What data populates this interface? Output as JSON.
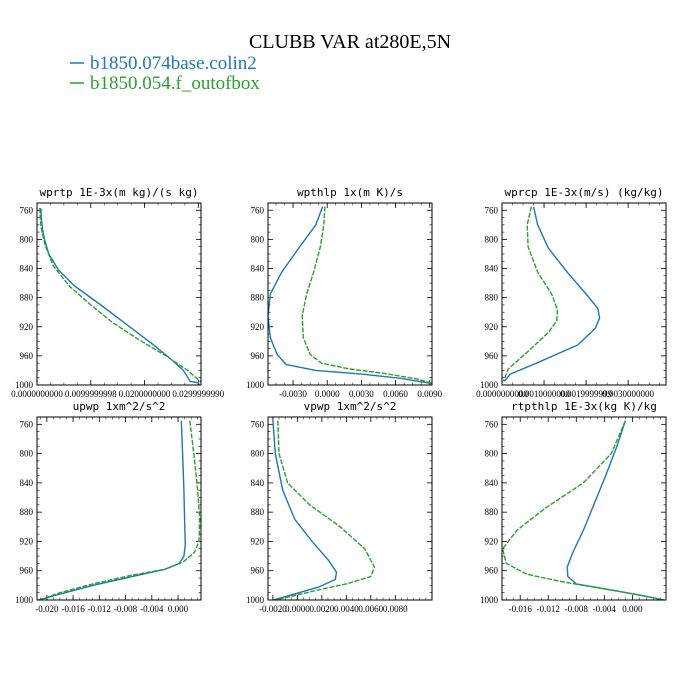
{
  "figure": {
    "title": "CLUBB VAR at280E,5N",
    "legend": [
      {
        "label": "b1850.074base.colin2",
        "color": "#1f77b4"
      },
      {
        "label": "b1850.054.f_outofbox",
        "color": "#2ca02c"
      }
    ]
  },
  "chart_data": [
    {
      "type": "line",
      "title": "wprtp  1E-3x(m kg)/(s kg)",
      "xlim": [
        0.0,
        0.0305
      ],
      "ylim": [
        1000,
        750
      ],
      "xticks": [
        0.0,
        0.0099999998,
        0.02,
        0.029999999
      ],
      "xtick_labels": [
        "0.0000000000",
        "0.0099999998",
        "0.0200000000",
        "0.0299999990"
      ],
      "yticks": [
        760,
        800,
        840,
        880,
        920,
        960,
        1000
      ],
      "ytick_labels": [
        "760",
        "800",
        "840",
        "880",
        "920",
        "960",
        "1000"
      ],
      "series": [
        {
          "name": "b1850.074base.colin2",
          "color": "#1f77b4",
          "x": [
            0.0007,
            0.0008,
            0.001,
            0.0014,
            0.0022,
            0.004,
            0.007,
            0.0115,
            0.0165,
            0.0215,
            0.025,
            0.0272,
            0.0285,
            0.03,
            0.0302
          ],
          "y": [
            757,
            770,
            785,
            800,
            820,
            842,
            864,
            888,
            916,
            944,
            965,
            980,
            995,
            997,
            1000
          ]
        },
        {
          "name": "b1850.054.f_outofbox",
          "color": "#2ca02c",
          "x": [
            0.0005,
            0.0006,
            0.0008,
            0.0015,
            0.003,
            0.006,
            0.01,
            0.014,
            0.019,
            0.024,
            0.028,
            0.0305
          ],
          "y": [
            757,
            770,
            785,
            808,
            836,
            864,
            890,
            914,
            938,
            960,
            980,
            996
          ]
        }
      ]
    },
    {
      "type": "line",
      "title": "wpthlp  1x(m K)/s",
      "xlim": [
        -0.0052,
        0.0092
      ],
      "ylim": [
        1000,
        750
      ],
      "xticks": [
        -0.003,
        0.0,
        0.003,
        0.006,
        0.009
      ],
      "xtick_labels": [
        "-0.0030",
        "0.0000",
        "0.0030",
        "0.0060",
        "0.0090"
      ],
      "yticks": [
        760,
        800,
        840,
        880,
        920,
        960,
        1000
      ],
      "ytick_labels": [
        "760",
        "800",
        "840",
        "880",
        "920",
        "960",
        "1000"
      ],
      "series": [
        {
          "name": "b1850.074base.colin2",
          "color": "#1f77b4",
          "x": [
            -0.0004,
            -0.001,
            -0.0025,
            -0.004,
            -0.005,
            -0.0052,
            -0.005,
            -0.0044,
            -0.0036,
            -0.001,
            0.003,
            0.0065,
            0.0092
          ],
          "y": [
            755,
            780,
            812,
            845,
            875,
            905,
            935,
            958,
            972,
            980,
            985,
            991,
            998
          ]
        },
        {
          "name": "b1850.054.f_outofbox",
          "color": "#2ca02c",
          "x": [
            -0.0002,
            -0.0003,
            -0.0006,
            -0.0012,
            -0.0018,
            -0.0022,
            -0.0021,
            -0.0015,
            -0.0005,
            0.002,
            0.005,
            0.008,
            0.0092
          ],
          "y": [
            755,
            780,
            810,
            845,
            875,
            905,
            935,
            958,
            970,
            978,
            984,
            992,
            998
          ]
        }
      ]
    },
    {
      "type": "line",
      "title": "wprcp  1E-3x(m/s) (kg/kg)",
      "xlim": [
        0.0,
        0.0039
      ],
      "ylim": [
        1000,
        750
      ],
      "xticks": [
        0.0,
        0.001,
        0.002,
        0.003
      ],
      "xtick_labels": [
        "0.0000000000",
        "0.0010000000",
        "0.0019999999",
        "0.0030000000"
      ],
      "yticks": [
        760,
        800,
        840,
        880,
        920,
        960,
        1000
      ],
      "ytick_labels": [
        "760",
        "800",
        "840",
        "880",
        "920",
        "960",
        "1000"
      ],
      "series": [
        {
          "name": "b1850.074base.colin2",
          "color": "#1f77b4",
          "x": [
            0.00075,
            0.00085,
            0.0011,
            0.00155,
            0.002,
            0.00228,
            0.00232,
            0.00222,
            0.0018,
            0.0009,
            0.0002,
            5e-05
          ],
          "y": [
            755,
            780,
            812,
            845,
            875,
            895,
            908,
            922,
            945,
            968,
            985,
            995
          ]
        },
        {
          "name": "b1850.054.f_outofbox",
          "color": "#2ca02c",
          "x": [
            0.0007,
            0.0006,
            0.00062,
            0.00085,
            0.00118,
            0.00132,
            0.0013,
            0.0011,
            0.0006,
            0.00015,
            3e-05
          ],
          "y": [
            755,
            780,
            810,
            845,
            875,
            897,
            912,
            928,
            955,
            978,
            995
          ]
        }
      ]
    },
    {
      "type": "line",
      "title": "upwp  1xm^2/s^2",
      "xlim": [
        -0.0215,
        0.0035
      ],
      "ylim": [
        1000,
        750
      ],
      "xticks": [
        -0.02,
        -0.016,
        -0.012,
        -0.008,
        -0.004,
        0.0
      ],
      "xtick_labels": [
        "-0.020",
        "-0.016",
        "-0.012",
        "-0.008",
        "-0.004",
        "0.000"
      ],
      "yticks": [
        760,
        800,
        840,
        880,
        920,
        960,
        1000
      ],
      "ytick_labels": [
        "760",
        "800",
        "840",
        "880",
        "920",
        "960",
        "1000"
      ],
      "series": [
        {
          "name": "b1850.074base.colin2",
          "color": "#1f77b4",
          "x": [
            0.0005,
            0.0007,
            0.0009,
            0.001,
            0.0011,
            0.0009,
            0.0002,
            -0.002,
            -0.007,
            -0.013,
            -0.018,
            -0.0212
          ],
          "y": [
            755,
            800,
            850,
            890,
            925,
            940,
            950,
            958,
            968,
            980,
            992,
            1000
          ]
        },
        {
          "name": "b1850.054.f_outofbox",
          "color": "#2ca02c",
          "x": [
            0.0018,
            0.0024,
            0.003,
            0.0033,
            0.0032,
            0.0025,
            0.0008,
            -0.002,
            -0.007,
            -0.013,
            -0.018,
            -0.0212
          ],
          "y": [
            755,
            800,
            850,
            890,
            920,
            935,
            948,
            958,
            966,
            978,
            990,
            1000
          ]
        }
      ]
    },
    {
      "type": "line",
      "title": "vpwp  1xm^2/s^2",
      "xlim": [
        -0.0024,
        0.011
      ],
      "ylim": [
        1000,
        750
      ],
      "xticks": [
        -0.002,
        0.0,
        0.002,
        0.004,
        0.006,
        0.008
      ],
      "xtick_labels": [
        "-0.0020",
        "0.0000",
        "0.0020",
        "0.0040",
        "0.0060",
        "0.0080"
      ],
      "yticks": [
        760,
        800,
        840,
        880,
        920,
        960,
        1000
      ],
      "ytick_labels": [
        "760",
        "800",
        "840",
        "880",
        "920",
        "960",
        "1000"
      ],
      "series": [
        {
          "name": "b1850.074base.colin2",
          "color": "#1f77b4",
          "x": [
            -0.002,
            -0.0018,
            -0.0012,
            -0.0002,
            0.0012,
            0.0025,
            0.0032,
            0.0031,
            0.0018,
            -0.0005,
            -0.002
          ],
          "y": [
            755,
            800,
            850,
            890,
            920,
            945,
            962,
            972,
            982,
            993,
            1000
          ]
        },
        {
          "name": "b1850.054.f_outofbox",
          "color": "#2ca02c",
          "x": [
            -0.0016,
            -0.0015,
            -0.0008,
            0.001,
            0.0035,
            0.0055,
            0.0063,
            0.006,
            0.004,
            0.0015,
            -0.0005,
            -0.0018
          ],
          "y": [
            755,
            800,
            840,
            870,
            900,
            930,
            955,
            968,
            978,
            987,
            995,
            1000
          ]
        }
      ]
    },
    {
      "type": "line",
      "title": "rtpthlp  1E-3x(kg K)/kg",
      "xlim": [
        -0.0186,
        0.0048
      ],
      "ylim": [
        1000,
        750
      ],
      "xticks": [
        -0.016,
        -0.012,
        -0.008,
        -0.004,
        0.0
      ],
      "xtick_labels": [
        "-0.016",
        "-0.012",
        "-0.008",
        "-0.004",
        "0.000"
      ],
      "yticks": [
        760,
        800,
        840,
        880,
        920,
        960,
        1000
      ],
      "ytick_labels": [
        "760",
        "800",
        "840",
        "880",
        "920",
        "960",
        "1000"
      ],
      "series": [
        {
          "name": "b1850.074base.colin2",
          "color": "#1f77b4",
          "x": [
            -0.001,
            -0.0022,
            -0.0038,
            -0.0055,
            -0.007,
            -0.0085,
            -0.0093,
            -0.0092,
            -0.008,
            -0.002,
            0.0025,
            0.0045
          ],
          "y": [
            755,
            790,
            830,
            870,
            905,
            935,
            955,
            968,
            978,
            988,
            996,
            1000
          ]
        },
        {
          "name": "b1850.054.f_outofbox",
          "color": "#2ca02c",
          "x": [
            -0.001,
            -0.003,
            -0.007,
            -0.0125,
            -0.0165,
            -0.0185,
            -0.018,
            -0.015,
            -0.01,
            -0.004,
            0.001,
            0.0045
          ],
          "y": [
            755,
            800,
            840,
            875,
            905,
            930,
            950,
            965,
            975,
            985,
            993,
            1000
          ]
        }
      ]
    }
  ]
}
